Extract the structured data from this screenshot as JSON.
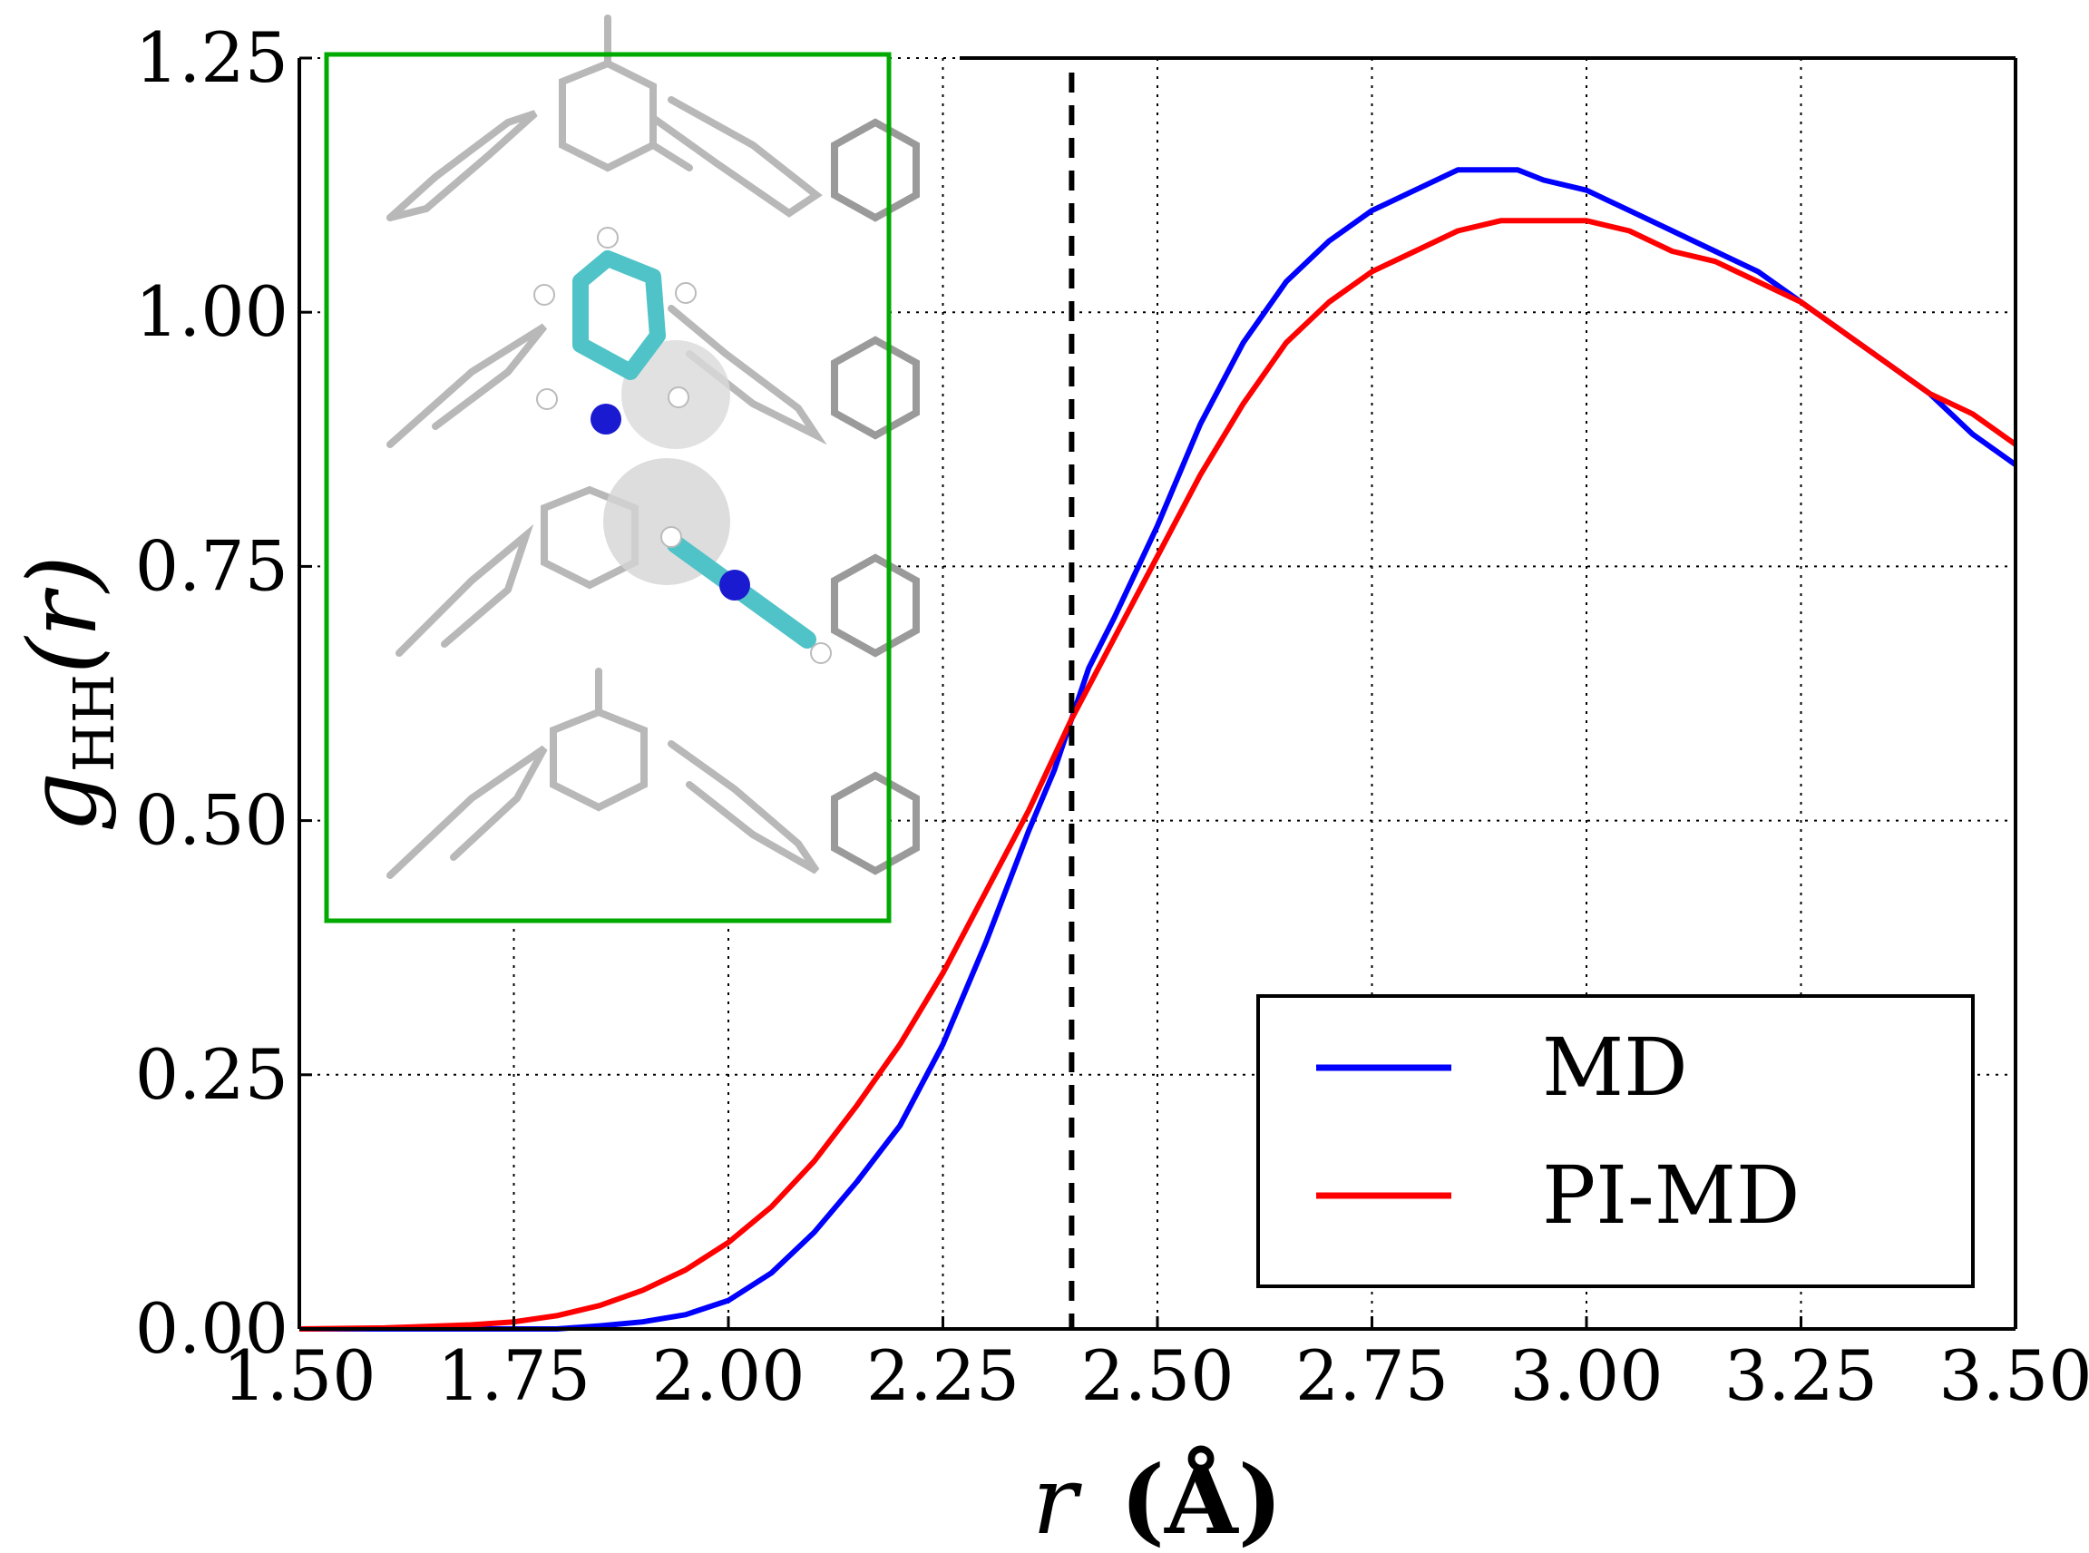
{
  "chart_data": {
    "type": "line",
    "xlabel": {
      "var": "r",
      "unit": "(Å)"
    },
    "ylabel": {
      "var": "g",
      "sub": "HH",
      "arg": "(r)"
    },
    "xlim": [
      1.5,
      3.5
    ],
    "ylim": [
      0.0,
      1.25
    ],
    "xticks": [
      "1.50",
      "1.75",
      "2.00",
      "2.25",
      "2.50",
      "2.75",
      "3.00",
      "3.25",
      "3.50"
    ],
    "yticks": [
      "0.00",
      "0.25",
      "0.50",
      "0.75",
      "1.00",
      "1.25"
    ],
    "grid": true,
    "legend_position": "bottom-right",
    "vline": {
      "x": 2.4,
      "style": "dashed",
      "color": "#000000"
    },
    "inset": {
      "description_icon": "molecular-structure-image",
      "border_color": "#00aa00"
    },
    "series": [
      {
        "name": "MD",
        "color": "#0000ff",
        "x": [
          1.5,
          1.6,
          1.7,
          1.8,
          1.85,
          1.9,
          1.95,
          2.0,
          2.05,
          2.1,
          2.15,
          2.2,
          2.25,
          2.3,
          2.35,
          2.38,
          2.4,
          2.42,
          2.45,
          2.5,
          2.55,
          2.6,
          2.65,
          2.7,
          2.75,
          2.8,
          2.85,
          2.88,
          2.92,
          2.95,
          3.0,
          3.05,
          3.1,
          3.15,
          3.2,
          3.25,
          3.3,
          3.35,
          3.4,
          3.45,
          3.5
        ],
        "y": [
          0.0,
          0.0,
          0.0,
          0.0,
          0.003,
          0.007,
          0.014,
          0.028,
          0.055,
          0.095,
          0.145,
          0.2,
          0.28,
          0.38,
          0.49,
          0.55,
          0.6,
          0.65,
          0.7,
          0.79,
          0.89,
          0.97,
          1.03,
          1.07,
          1.1,
          1.12,
          1.14,
          1.14,
          1.14,
          1.13,
          1.12,
          1.1,
          1.08,
          1.06,
          1.04,
          1.01,
          0.98,
          0.95,
          0.92,
          0.88,
          0.85
        ]
      },
      {
        "name": "PI-MD",
        "color": "#ff0000",
        "x": [
          1.5,
          1.6,
          1.7,
          1.75,
          1.8,
          1.85,
          1.9,
          1.95,
          2.0,
          2.05,
          2.1,
          2.15,
          2.2,
          2.25,
          2.3,
          2.35,
          2.4,
          2.45,
          2.5,
          2.55,
          2.6,
          2.65,
          2.7,
          2.75,
          2.8,
          2.85,
          2.9,
          2.95,
          3.0,
          3.05,
          3.1,
          3.15,
          3.2,
          3.25,
          3.3,
          3.35,
          3.4,
          3.45,
          3.5
        ],
        "y": [
          0.0,
          0.001,
          0.004,
          0.007,
          0.013,
          0.023,
          0.038,
          0.058,
          0.085,
          0.12,
          0.165,
          0.22,
          0.28,
          0.35,
          0.43,
          0.51,
          0.6,
          0.68,
          0.76,
          0.84,
          0.91,
          0.97,
          1.01,
          1.04,
          1.06,
          1.08,
          1.09,
          1.09,
          1.09,
          1.08,
          1.06,
          1.05,
          1.03,
          1.01,
          0.98,
          0.95,
          0.92,
          0.9,
          0.87
        ]
      }
    ]
  }
}
